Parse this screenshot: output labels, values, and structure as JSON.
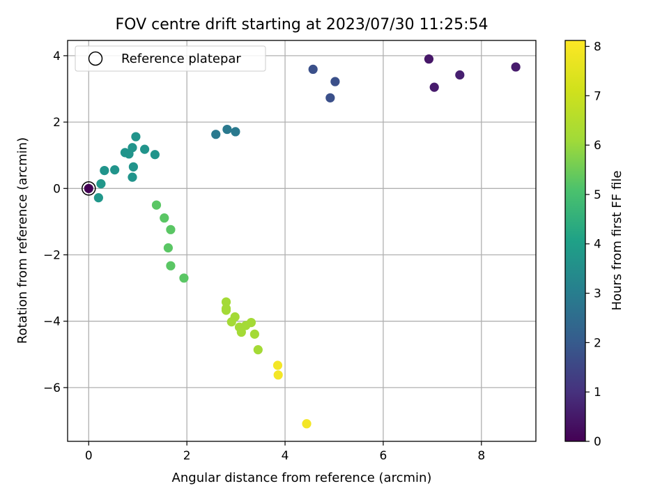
{
  "chart_data": {
    "type": "scatter",
    "title": "FOV centre drift starting at 2023/07/30 11:25:54",
    "xlabel": "Angular distance from reference (arcmin)",
    "ylabel": "Rotation from reference (arcmin)",
    "xlim": [
      -0.43,
      9.11
    ],
    "ylim": [
      -7.62,
      4.46
    ],
    "x_ticks": [
      0,
      2,
      4,
      6,
      8
    ],
    "y_ticks": [
      -6,
      -4,
      -2,
      0,
      2,
      4
    ],
    "grid": true,
    "legend": {
      "position": "top-left",
      "entries": [
        {
          "label": "Reference platepar",
          "marker": "hollow-circle"
        }
      ]
    },
    "colorbar": {
      "label": "Hours from first FF file",
      "colormap": "viridis",
      "range": [
        0,
        8.12
      ],
      "ticks": [
        0,
        1,
        2,
        3,
        4,
        5,
        6,
        7,
        8
      ]
    },
    "reference_point": {
      "x": 0,
      "y": 0
    },
    "points": [
      {
        "x": 0.0,
        "y": 0.0,
        "h": 0.0
      },
      {
        "x": 6.93,
        "y": 3.9,
        "h": 0.5
      },
      {
        "x": 7.04,
        "y": 3.05,
        "h": 0.6
      },
      {
        "x": 7.56,
        "y": 3.42,
        "h": 0.7
      },
      {
        "x": 8.7,
        "y": 3.66,
        "h": 0.6
      },
      {
        "x": 4.57,
        "y": 3.59,
        "h": 2.0
      },
      {
        "x": 5.02,
        "y": 3.22,
        "h": 2.0
      },
      {
        "x": 4.92,
        "y": 2.73,
        "h": 2.0
      },
      {
        "x": 2.59,
        "y": 1.63,
        "h": 3.3
      },
      {
        "x": 2.82,
        "y": 1.78,
        "h": 3.3
      },
      {
        "x": 2.99,
        "y": 1.71,
        "h": 3.3
      },
      {
        "x": 0.96,
        "y": 1.56,
        "h": 4.2
      },
      {
        "x": 0.89,
        "y": 1.23,
        "h": 4.2
      },
      {
        "x": 1.14,
        "y": 1.18,
        "h": 4.2
      },
      {
        "x": 0.74,
        "y": 1.08,
        "h": 4.2
      },
      {
        "x": 0.82,
        "y": 1.04,
        "h": 4.2
      },
      {
        "x": 1.35,
        "y": 1.02,
        "h": 4.2
      },
      {
        "x": 0.91,
        "y": 0.65,
        "h": 4.2
      },
      {
        "x": 0.53,
        "y": 0.56,
        "h": 4.2
      },
      {
        "x": 0.32,
        "y": 0.54,
        "h": 4.2
      },
      {
        "x": 0.89,
        "y": 0.34,
        "h": 4.2
      },
      {
        "x": 0.25,
        "y": 0.14,
        "h": 4.3
      },
      {
        "x": 0.2,
        "y": -0.28,
        "h": 4.3
      },
      {
        "x": 1.38,
        "y": -0.5,
        "h": 6.0
      },
      {
        "x": 1.54,
        "y": -0.89,
        "h": 6.0
      },
      {
        "x": 1.67,
        "y": -1.24,
        "h": 6.0
      },
      {
        "x": 1.62,
        "y": -1.79,
        "h": 6.0
      },
      {
        "x": 1.67,
        "y": -2.33,
        "h": 6.0
      },
      {
        "x": 1.94,
        "y": -2.7,
        "h": 6.0
      },
      {
        "x": 2.8,
        "y": -3.42,
        "h": 7.0
      },
      {
        "x": 2.8,
        "y": -3.67,
        "h": 7.0
      },
      {
        "x": 2.8,
        "y": -3.62,
        "h": 7.0
      },
      {
        "x": 2.98,
        "y": -3.87,
        "h": 7.0
      },
      {
        "x": 2.91,
        "y": -4.02,
        "h": 7.0
      },
      {
        "x": 3.07,
        "y": -4.18,
        "h": 7.0
      },
      {
        "x": 3.2,
        "y": -4.13,
        "h": 7.0
      },
      {
        "x": 3.31,
        "y": -4.04,
        "h": 7.0
      },
      {
        "x": 3.11,
        "y": -4.33,
        "h": 7.0
      },
      {
        "x": 3.38,
        "y": -4.39,
        "h": 7.0
      },
      {
        "x": 3.45,
        "y": -4.86,
        "h": 7.0
      },
      {
        "x": 3.85,
        "y": -5.33,
        "h": 8.0
      },
      {
        "x": 3.86,
        "y": -5.62,
        "h": 8.0
      },
      {
        "x": 4.44,
        "y": -7.09,
        "h": 8.0
      }
    ]
  }
}
